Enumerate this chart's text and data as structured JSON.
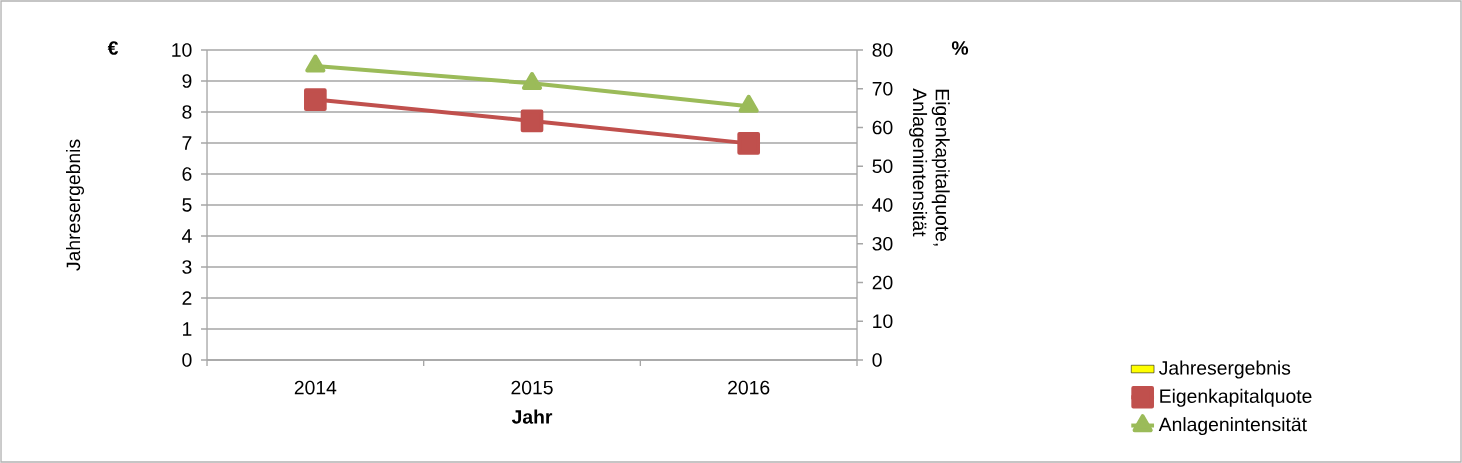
{
  "chart_data": {
    "type": "line",
    "xlabel": "Jahr",
    "ylabel": "Jahresergebnis",
    "y2label": "Eigenkapitalquote, Anlagenintensität",
    "annotations": [
      "€",
      "%"
    ],
    "categories": [
      "2014",
      "2015",
      "2016"
    ],
    "series": [
      {
        "name": "Jahresergebnis",
        "type": "bar",
        "color": "#ffff00",
        "values": [
          null,
          null,
          null
        ]
      },
      {
        "name": "Eigenkapitalquote",
        "axis": "y2",
        "marker": "square",
        "color": "#c0504d",
        "values": [
          67.2,
          61.7,
          55.9
        ]
      },
      {
        "name": "Anlagenintensität",
        "axis": "y2",
        "marker": "triangle",
        "color": "#9bbb59",
        "values": [
          75.9,
          71.4,
          65.5
        ]
      }
    ],
    "ylim": [
      0,
      10
    ],
    "yticks": [
      0,
      1,
      2,
      3,
      4,
      5,
      6,
      7,
      8,
      9,
      10
    ],
    "y2lim": [
      0,
      80
    ],
    "y2ticks": [
      0,
      10,
      20,
      30,
      40,
      50,
      60,
      70,
      80
    ],
    "grid": "y",
    "legend": "bottom right"
  }
}
